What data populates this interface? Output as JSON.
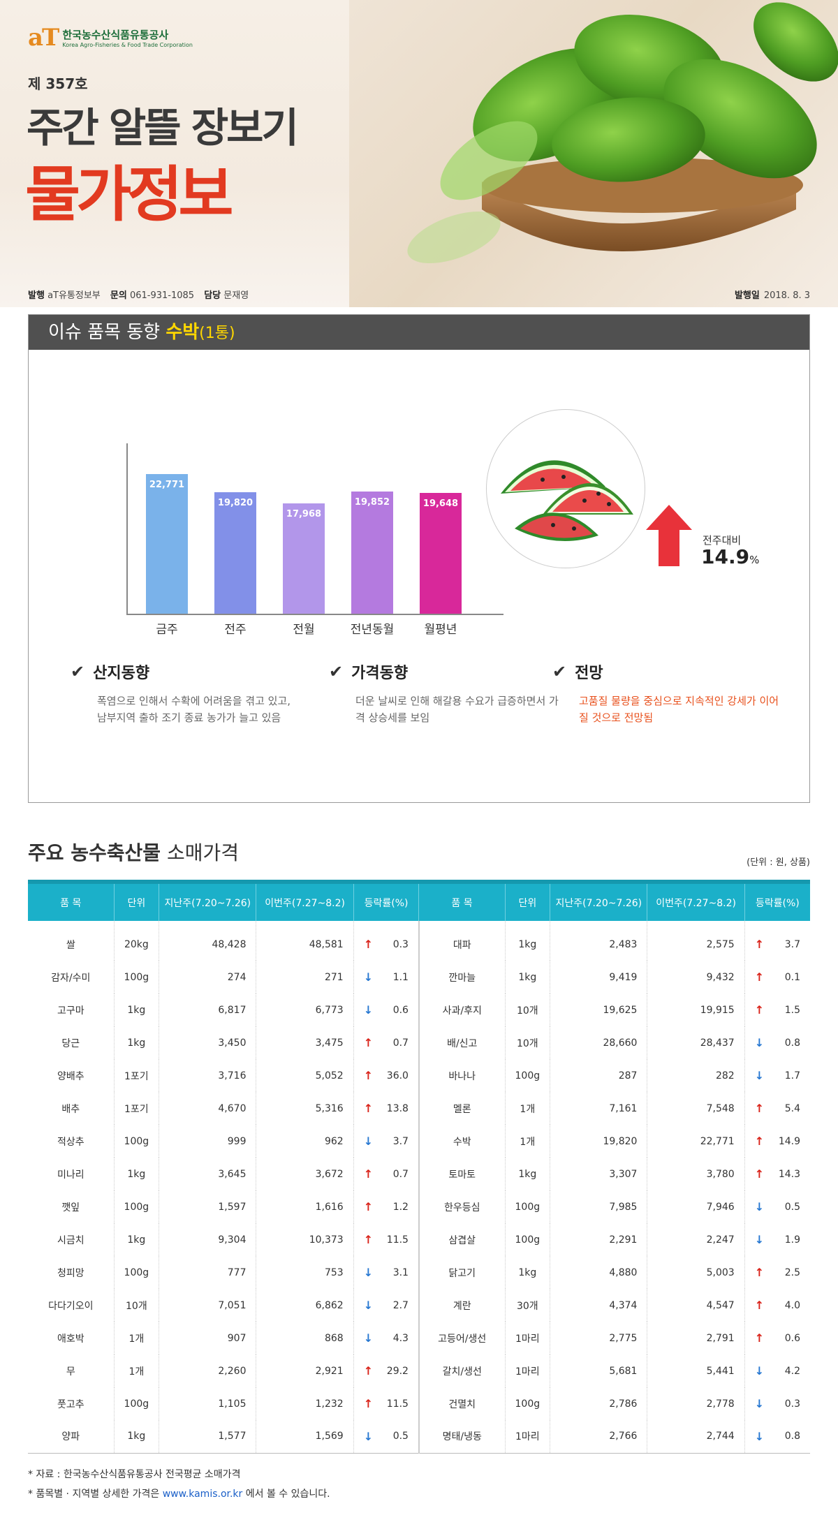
{
  "header": {
    "logo_mark": "aT",
    "logo_ko": "한국농수산식품유통공사",
    "logo_en": "Korea Agro-Fisheries & Food Trade Corporation",
    "issue": "제 357호",
    "title_line1": "주간 알뜰 장보기",
    "title_line2": "물가정보"
  },
  "meta": {
    "publisher_label": "발행",
    "publisher": "aT유통정보부",
    "contact_label": "문의",
    "contact": "061-931-1085",
    "manager_label": "담당",
    "manager": "문재영",
    "date_label": "발행일",
    "date": "2018. 8. 3"
  },
  "issue_item": {
    "heading": "이슈 품목 동향",
    "item": "수박",
    "unit": "(1통)",
    "change_label": "전주대비",
    "change_value": "14.9",
    "change_unit": "%",
    "notes": [
      {
        "title": "산지동향",
        "body": "폭염으로 인해서 수확에 어려움을 겪고 있고, 남부지역 출하 조기 종료 농가가 늘고 있음"
      },
      {
        "title": "가격동향",
        "body": "더운 날씨로 인해 해갈용 수요가 급증하면서 가격 상승세를 보임"
      },
      {
        "title": "전망",
        "body": "고품질 물량을 중심으로 지속적인 강세가 이어질 것으로 전망됨"
      }
    ]
  },
  "chart_data": {
    "type": "bar",
    "categories": [
      "금주",
      "전주",
      "전월",
      "전년동월",
      "월평년"
    ],
    "values": [
      22771,
      19820,
      17968,
      19852,
      19648
    ],
    "value_labels": [
      "22,771",
      "19,820",
      "17,968",
      "19,852",
      "19,648"
    ],
    "colors": [
      "#7ab2ea",
      "#8290e8",
      "#b296ea",
      "#b47adf",
      "#d8289a"
    ],
    "title": "",
    "xlabel": "",
    "ylabel": "",
    "ylim": [
      0,
      25000
    ]
  },
  "prices": {
    "section_title_bold": "주요 농수축산물",
    "section_title": "소매가격",
    "unit_note": "(단위 : 원, 상품)",
    "headers": [
      "품 목",
      "단위",
      "지난주(7.20~7.26)",
      "이번주(7.27~8.2)",
      "등락률(%)"
    ],
    "left": [
      [
        "쌀",
        "20kg",
        "48,428",
        "48,581",
        "up",
        "0.3"
      ],
      [
        "감자/수미",
        "100g",
        "274",
        "271",
        "down",
        "1.1"
      ],
      [
        "고구마",
        "1kg",
        "6,817",
        "6,773",
        "down",
        "0.6"
      ],
      [
        "당근",
        "1kg",
        "3,450",
        "3,475",
        "up",
        "0.7"
      ],
      [
        "양배추",
        "1포기",
        "3,716",
        "5,052",
        "up",
        "36.0"
      ],
      [
        "배추",
        "1포기",
        "4,670",
        "5,316",
        "up",
        "13.8"
      ],
      [
        "적상추",
        "100g",
        "999",
        "962",
        "down",
        "3.7"
      ],
      [
        "미나리",
        "1kg",
        "3,645",
        "3,672",
        "up",
        "0.7"
      ],
      [
        "깻잎",
        "100g",
        "1,597",
        "1,616",
        "up",
        "1.2"
      ],
      [
        "시금치",
        "1kg",
        "9,304",
        "10,373",
        "up",
        "11.5"
      ],
      [
        "청피망",
        "100g",
        "777",
        "753",
        "down",
        "3.1"
      ],
      [
        "다다기오이",
        "10개",
        "7,051",
        "6,862",
        "down",
        "2.7"
      ],
      [
        "애호박",
        "1개",
        "907",
        "868",
        "down",
        "4.3"
      ],
      [
        "무",
        "1개",
        "2,260",
        "2,921",
        "up",
        "29.2"
      ],
      [
        "풋고추",
        "100g",
        "1,105",
        "1,232",
        "up",
        "11.5"
      ],
      [
        "양파",
        "1kg",
        "1,577",
        "1,569",
        "down",
        "0.5"
      ]
    ],
    "right": [
      [
        "대파",
        "1kg",
        "2,483",
        "2,575",
        "up",
        "3.7"
      ],
      [
        "깐마늘",
        "1kg",
        "9,419",
        "9,432",
        "up",
        "0.1"
      ],
      [
        "사과/후지",
        "10개",
        "19,625",
        "19,915",
        "up",
        "1.5"
      ],
      [
        "배/신고",
        "10개",
        "28,660",
        "28,437",
        "down",
        "0.8"
      ],
      [
        "바나나",
        "100g",
        "287",
        "282",
        "down",
        "1.7"
      ],
      [
        "멜론",
        "1개",
        "7,161",
        "7,548",
        "up",
        "5.4"
      ],
      [
        "수박",
        "1개",
        "19,820",
        "22,771",
        "up",
        "14.9"
      ],
      [
        "토마토",
        "1kg",
        "3,307",
        "3,780",
        "up",
        "14.3"
      ],
      [
        "한우등심",
        "100g",
        "7,985",
        "7,946",
        "down",
        "0.5"
      ],
      [
        "삼겹살",
        "100g",
        "2,291",
        "2,247",
        "down",
        "1.9"
      ],
      [
        "닭고기",
        "1kg",
        "4,880",
        "5,003",
        "up",
        "2.5"
      ],
      [
        "계란",
        "30개",
        "4,374",
        "4,547",
        "up",
        "4.0"
      ],
      [
        "고등어/생선",
        "1마리",
        "2,775",
        "2,791",
        "up",
        "0.6"
      ],
      [
        "갈치/생선",
        "1마리",
        "5,681",
        "5,441",
        "down",
        "4.2"
      ],
      [
        "건멸치",
        "100g",
        "2,786",
        "2,778",
        "down",
        "0.3"
      ],
      [
        "명태/냉동",
        "1마리",
        "2,766",
        "2,744",
        "down",
        "0.8"
      ]
    ]
  },
  "footer": {
    "source": "* 자료 : 한국농수산식품유통공사 전국평균 소매가격",
    "detail_prefix": "* 품목별 · 지역별 상세한 가격은 ",
    "link": "www.kamis.or.kr",
    "detail_suffix": " 에서 볼 수 있습니다."
  }
}
